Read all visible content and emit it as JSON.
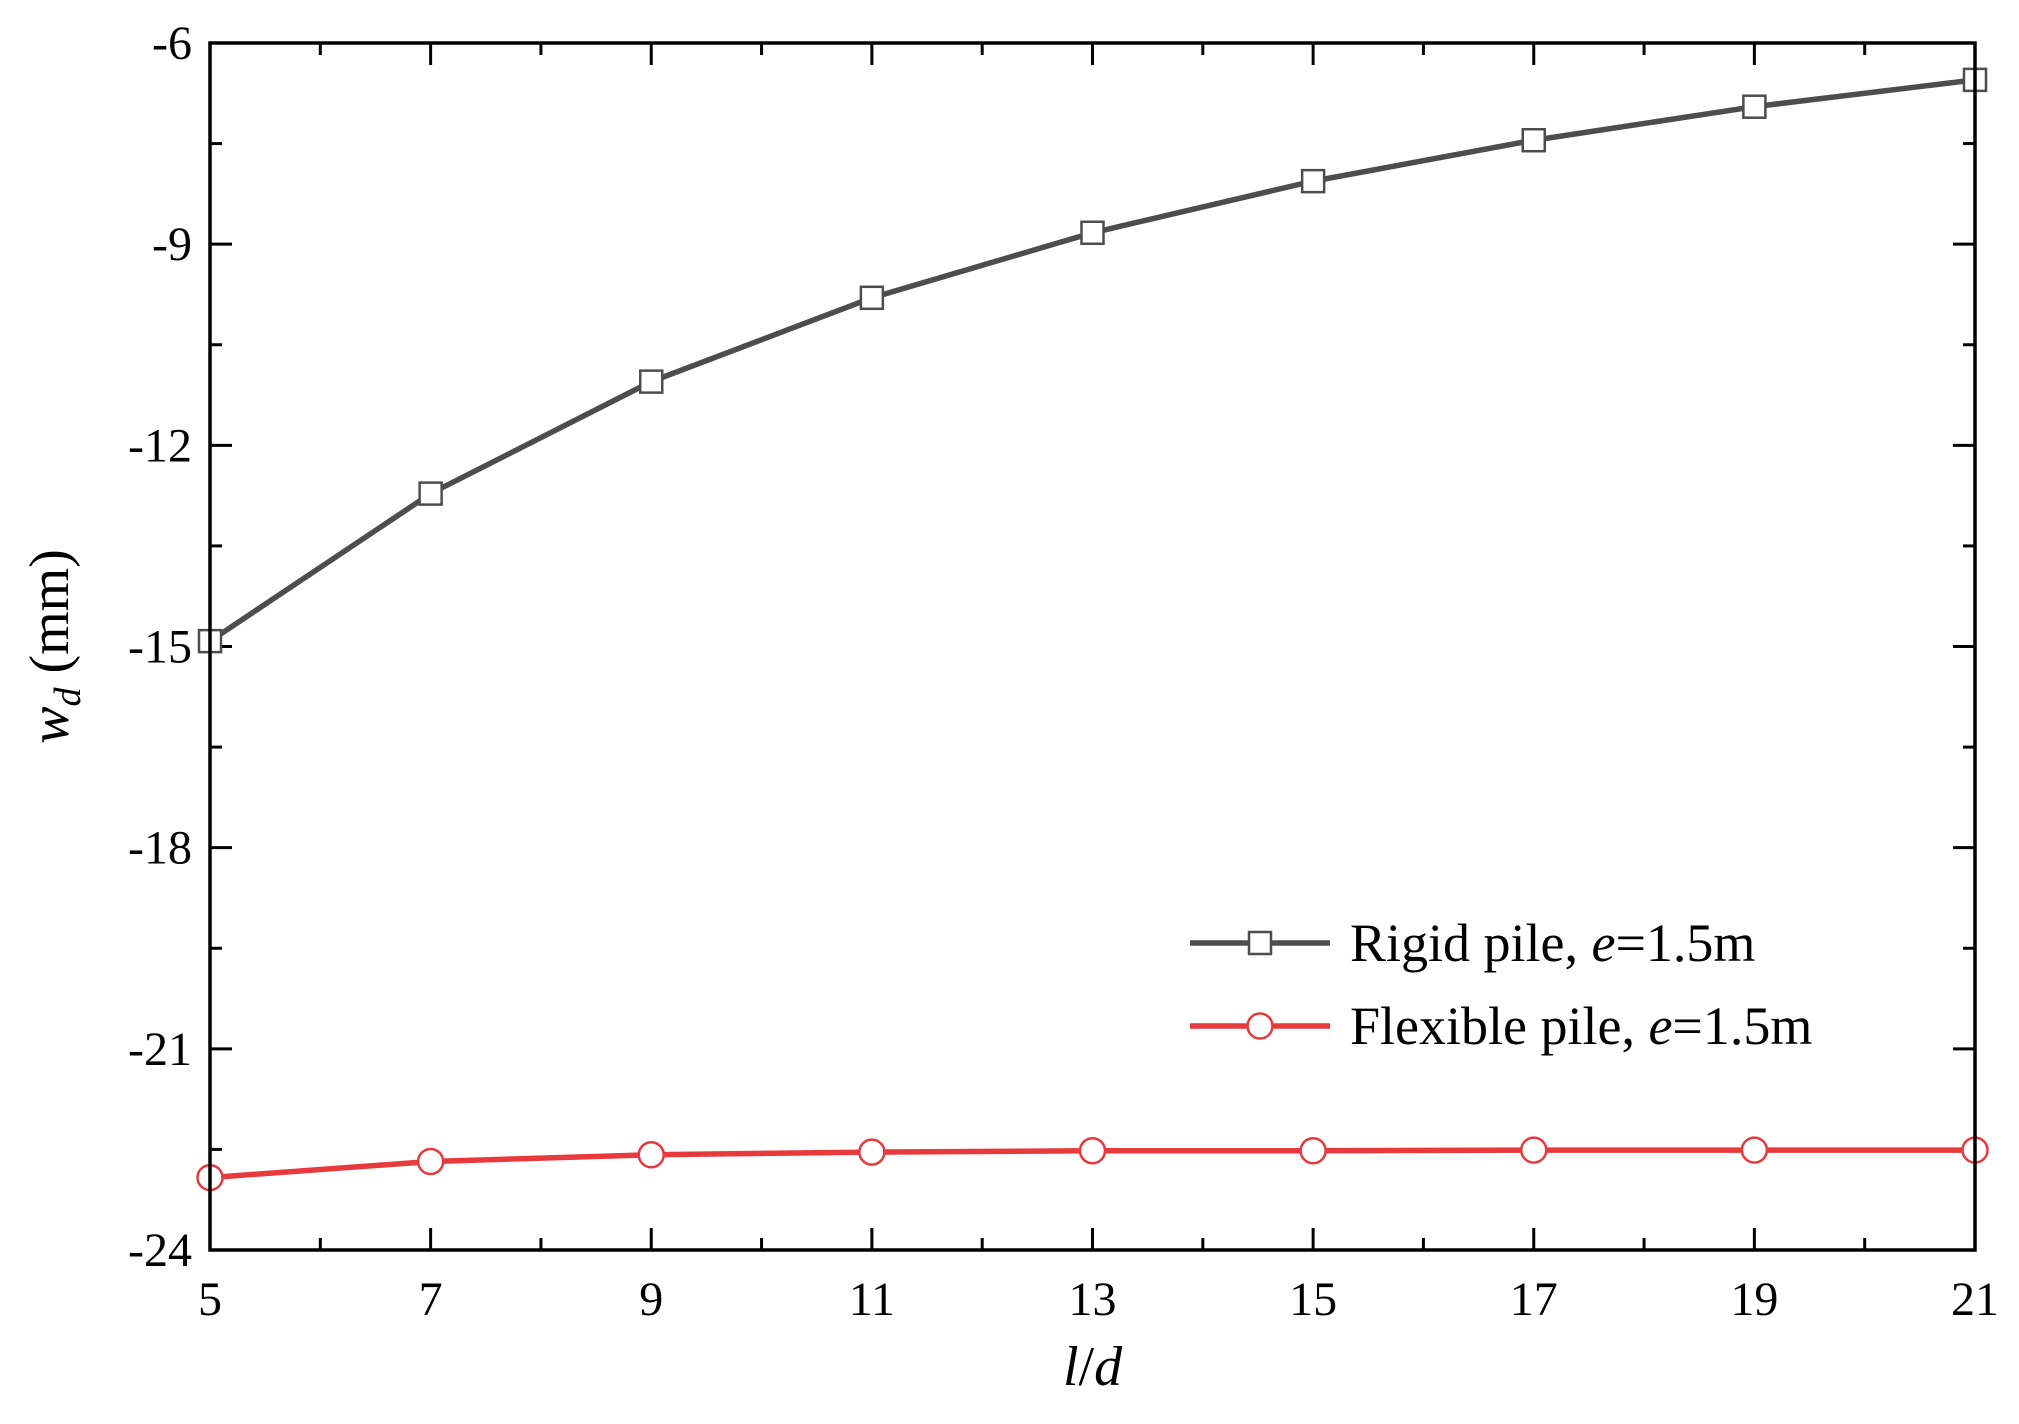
{
  "chart_data": {
    "type": "line",
    "xlabel": "l/d",
    "ylabel": "w_d (mm)",
    "ylabel_parts": {
      "symbol": "w",
      "subscript": "d",
      "unit": "(mm)"
    },
    "xlabel_parts": {
      "a": "l",
      "sep": "/",
      "b": "d"
    },
    "xlim": [
      5,
      21
    ],
    "ylim": [
      -24,
      -6
    ],
    "x_ticks": [
      5,
      7,
      9,
      11,
      13,
      15,
      17,
      19,
      21
    ],
    "y_ticks": [
      -24,
      -21,
      -18,
      -15,
      -12,
      -9,
      -6
    ],
    "x_tick_labels": [
      "5",
      "7",
      "9",
      "11",
      "13",
      "15",
      "17",
      "19",
      "21"
    ],
    "y_tick_labels": [
      "-24",
      "-21",
      "-18",
      "-15",
      "-12",
      "-9",
      "-6"
    ],
    "grid": false,
    "legend_position": "right",
    "series": [
      {
        "name": "Rigid pile, e=1.5m",
        "name_parts": {
          "prefix": "Rigid pile, ",
          "italic": "e",
          "suffix": "=1.5m"
        },
        "color": "#4d4d4d",
        "marker": "square",
        "x": [
          5,
          7,
          9,
          11,
          13,
          15,
          17,
          19,
          21
        ],
        "y": [
          -14.92,
          -12.72,
          -11.05,
          -9.8,
          -8.83,
          -8.06,
          -7.45,
          -6.95,
          -6.55
        ]
      },
      {
        "name": "Flexible pile, e=1.5m",
        "name_parts": {
          "prefix": "Flexible pile, ",
          "italic": "e",
          "suffix": "=1.5m"
        },
        "color": "#e8393c",
        "marker": "circle",
        "x": [
          5,
          7,
          9,
          11,
          13,
          15,
          17,
          19,
          21
        ],
        "y": [
          -22.92,
          -22.68,
          -22.58,
          -22.54,
          -22.52,
          -22.52,
          -22.51,
          -22.51,
          -22.51
        ]
      }
    ]
  }
}
